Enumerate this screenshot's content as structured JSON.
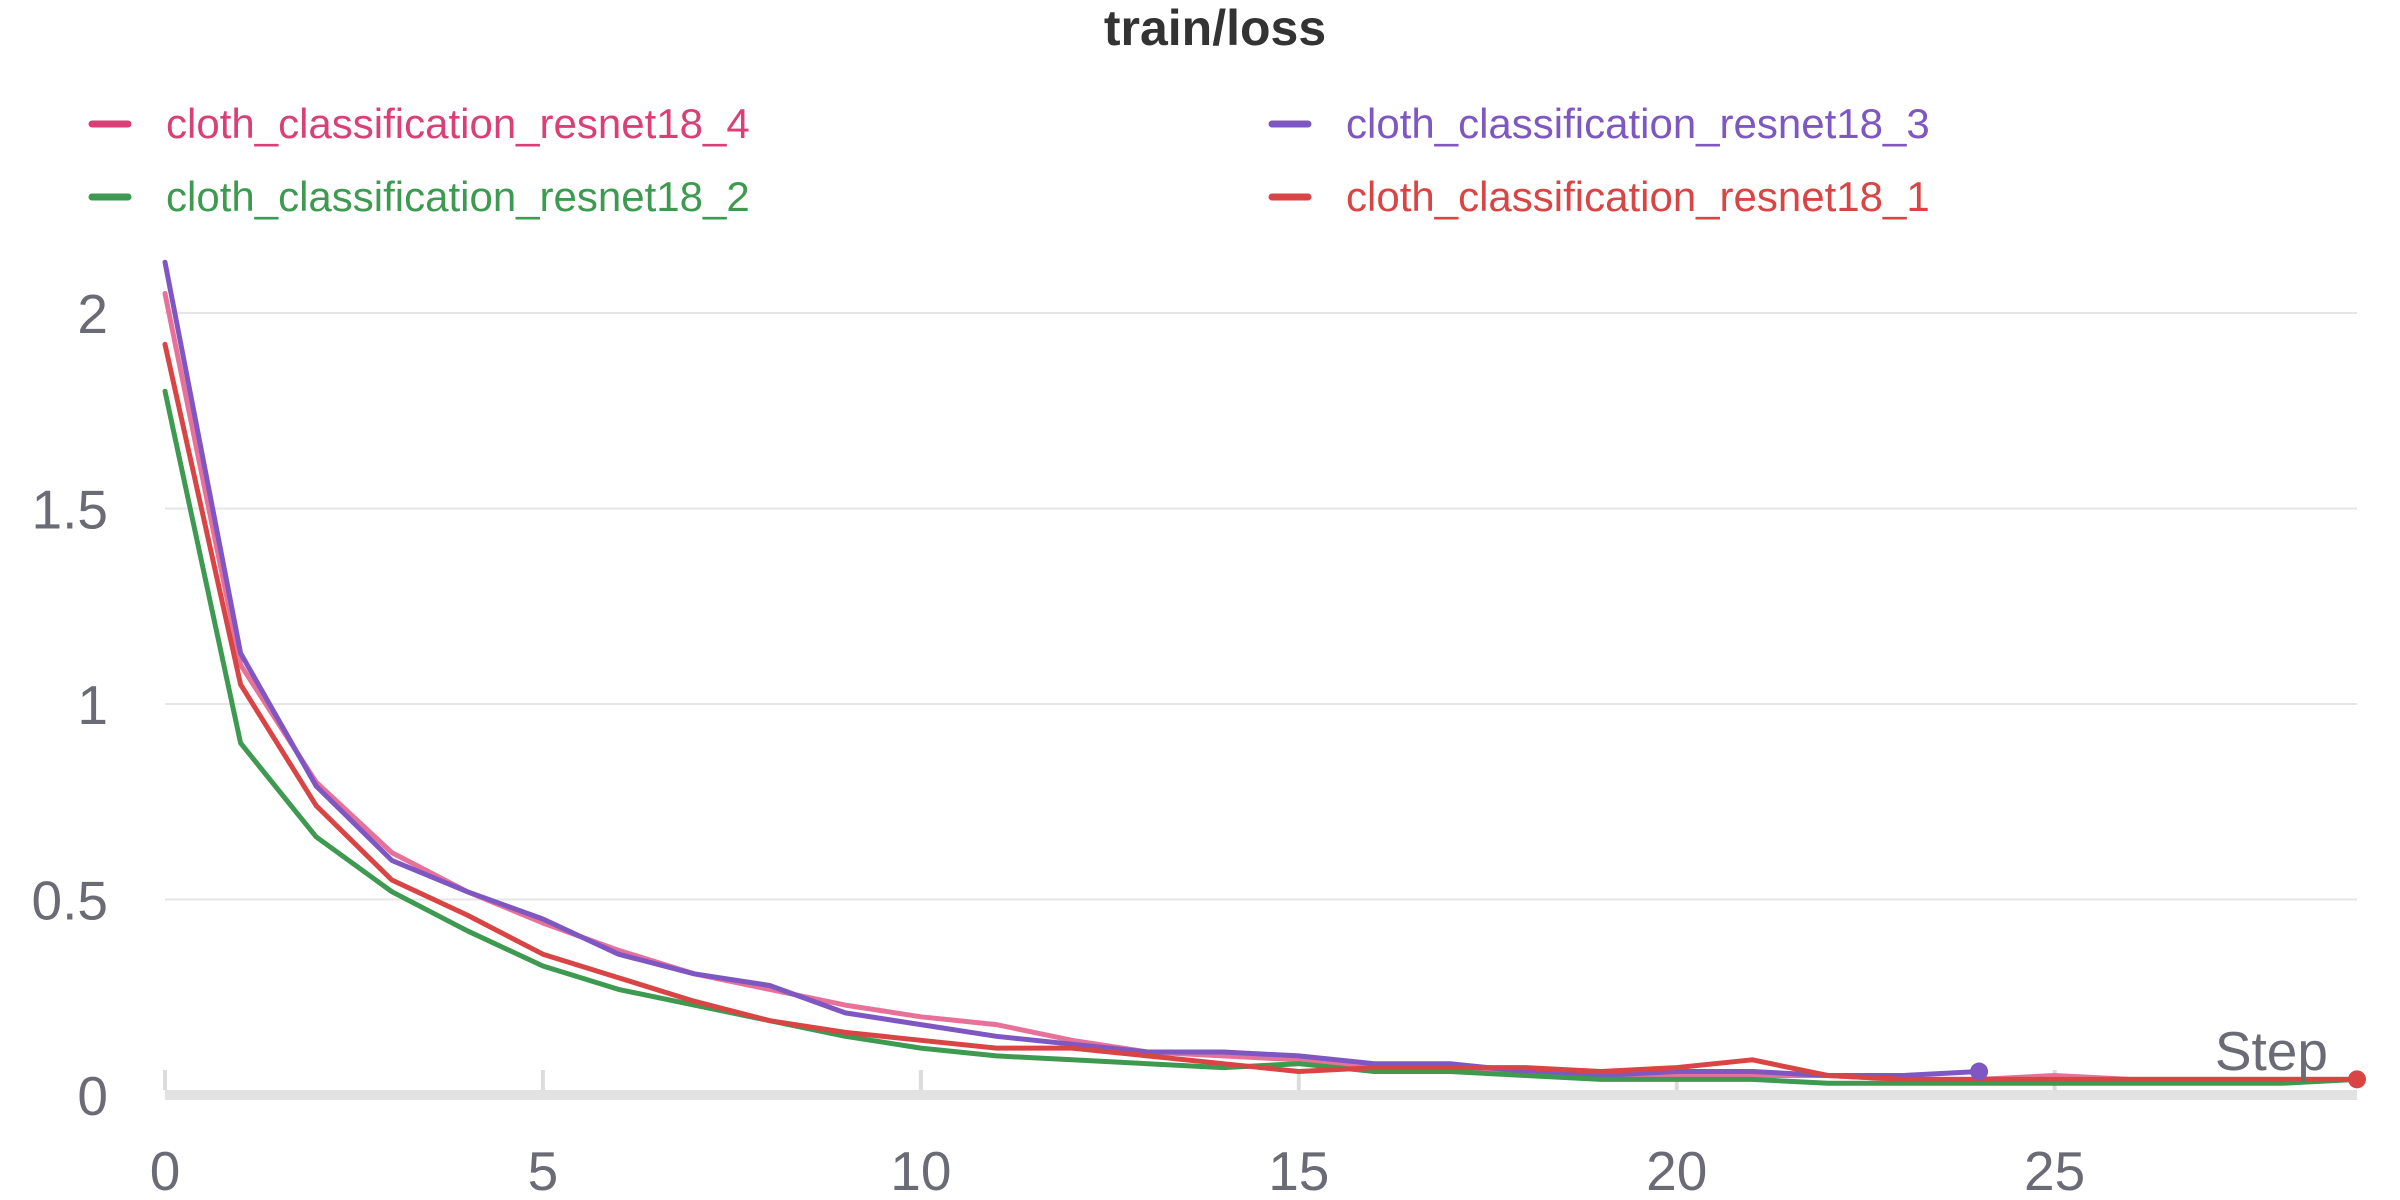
{
  "chart_data": {
    "type": "line",
    "title": "train/loss",
    "xlabel": "Step",
    "ylabel": "",
    "xlim": [
      0,
      29
    ],
    "ylim": [
      0,
      2.2
    ],
    "xticks": [
      0,
      5,
      10,
      15,
      20,
      25
    ],
    "yticks": [
      0,
      0.5,
      1,
      1.5,
      2
    ],
    "legend_position": "top",
    "grid": true,
    "series": [
      {
        "name": "cloth_classification_resnet18_4",
        "color": "#e8719a",
        "legend_color": "#da3f76",
        "x": [
          0,
          1,
          2,
          3,
          4,
          5,
          6,
          7,
          8,
          9,
          10,
          11,
          12,
          13,
          14,
          15,
          16,
          17,
          18,
          19,
          20,
          21,
          22,
          23,
          24,
          25,
          26,
          27,
          28,
          29
        ],
        "y": [
          2.05,
          1.1,
          0.8,
          0.62,
          0.52,
          0.44,
          0.37,
          0.31,
          0.27,
          0.23,
          0.2,
          0.18,
          0.14,
          0.11,
          0.1,
          0.09,
          0.07,
          0.07,
          0.06,
          0.05,
          0.05,
          0.05,
          0.05,
          0.04,
          0.04,
          0.05,
          0.04,
          0.04,
          0.04,
          0.04
        ]
      },
      {
        "name": "cloth_classification_resnet18_3",
        "color": "#7e57c2",
        "legend_color": "#7e57c2",
        "x": [
          0,
          1,
          2,
          3,
          4,
          5,
          6,
          7,
          8,
          9,
          10,
          11,
          12,
          13,
          14,
          15,
          16,
          17,
          18,
          19,
          20,
          21,
          22,
          23,
          24
        ],
        "y": [
          2.13,
          1.13,
          0.79,
          0.6,
          0.52,
          0.45,
          0.36,
          0.31,
          0.28,
          0.21,
          0.18,
          0.15,
          0.13,
          0.11,
          0.11,
          0.1,
          0.08,
          0.08,
          0.06,
          0.05,
          0.06,
          0.06,
          0.05,
          0.05,
          0.06
        ]
      },
      {
        "name": "cloth_classification_resnet18_2",
        "color": "#3d9a50",
        "legend_color": "#3d9a50",
        "x": [
          0,
          1,
          2,
          3,
          4,
          5,
          6,
          7,
          8,
          9,
          10,
          11,
          12,
          13,
          14,
          15,
          16,
          17,
          18,
          19,
          20,
          21,
          22,
          23,
          24,
          25,
          26,
          27,
          28,
          29
        ],
        "y": [
          1.8,
          0.9,
          0.66,
          0.52,
          0.42,
          0.33,
          0.27,
          0.23,
          0.19,
          0.15,
          0.12,
          0.1,
          0.09,
          0.08,
          0.07,
          0.08,
          0.06,
          0.06,
          0.05,
          0.04,
          0.04,
          0.04,
          0.03,
          0.03,
          0.03,
          0.03,
          0.03,
          0.03,
          0.03,
          0.04
        ]
      },
      {
        "name": "cloth_classification_resnet18_1",
        "color": "#d94545",
        "legend_color": "#d94545",
        "x": [
          0,
          1,
          2,
          3,
          4,
          5,
          6,
          7,
          8,
          9,
          10,
          11,
          12,
          13,
          14,
          15,
          16,
          17,
          18,
          19,
          20,
          21,
          22,
          23,
          24,
          25,
          26,
          27,
          28,
          29
        ],
        "y": [
          1.92,
          1.05,
          0.74,
          0.55,
          0.46,
          0.36,
          0.3,
          0.24,
          0.19,
          0.16,
          0.14,
          0.12,
          0.12,
          0.1,
          0.08,
          0.06,
          0.07,
          0.07,
          0.07,
          0.06,
          0.07,
          0.09,
          0.05,
          0.04,
          0.04,
          0.04,
          0.04,
          0.04,
          0.04,
          0.04
        ]
      }
    ]
  }
}
